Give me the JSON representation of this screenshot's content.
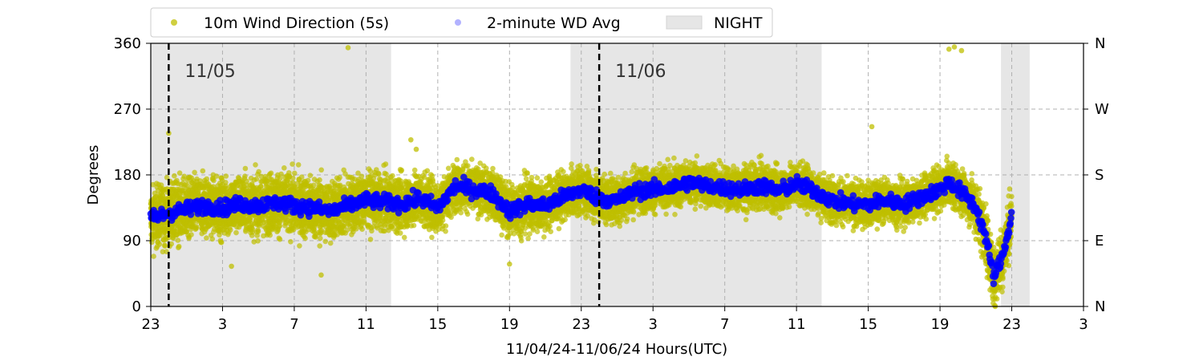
{
  "chart_data": {
    "type": "scatter",
    "xlabel": "11/04/24-11/06/24  Hours(UTC)",
    "ylabel": "Degrees",
    "x_range_hours": [
      0,
      52
    ],
    "x_tick_labels": [
      "23",
      "3",
      "7",
      "11",
      "15",
      "19",
      "23",
      "3",
      "7",
      "11",
      "15",
      "19",
      "23",
      "3"
    ],
    "ylim": [
      0,
      360
    ],
    "y_ticks": [
      "0",
      "90",
      "180",
      "270",
      "360"
    ],
    "y2_tick_labels": [
      "N",
      "E",
      "S",
      "W",
      "N"
    ],
    "grid": true,
    "legend_position": "top-left outside",
    "legend": {
      "wind": "10m Wind Direction (5s)",
      "avg": "2-minute WD Avg",
      "night": "NIGHT"
    },
    "colors": {
      "wind": "#bfbf00",
      "avg": "#0000ff",
      "night": "#e6e6e6",
      "midnight_line": "#000000"
    },
    "day_markers": [
      {
        "hour": 1,
        "label": "11/05"
      },
      {
        "hour": 25,
        "label": "11/06"
      }
    ],
    "night_bands": [
      [
        0,
        13.4
      ],
      [
        23.4,
        37.4
      ],
      [
        47.4,
        49
      ]
    ],
    "series": [
      {
        "name": "2-minute WD Avg",
        "x": [
          0,
          1,
          2,
          3,
          4,
          5,
          6,
          7,
          8,
          9,
          10,
          11,
          12,
          13,
          14,
          15,
          16,
          17,
          18,
          19,
          20,
          21,
          22,
          23,
          24,
          25,
          26,
          27,
          28,
          29,
          30,
          31,
          32,
          33,
          34,
          35,
          36,
          37,
          38,
          39,
          40,
          41,
          42,
          43,
          44,
          44.5,
          45,
          45.5,
          46,
          46.5,
          47,
          47.5,
          48
        ],
        "y": [
          120,
          128,
          133,
          138,
          135,
          140,
          138,
          142,
          138,
          135,
          130,
          138,
          145,
          143,
          140,
          148,
          135,
          165,
          160,
          155,
          130,
          140,
          138,
          150,
          160,
          148,
          145,
          158,
          160,
          162,
          170,
          165,
          162,
          160,
          165,
          158,
          168,
          158,
          145,
          140,
          140,
          145,
          140,
          150,
          160,
          170,
          160,
          150,
          135,
          100,
          40,
          70,
          125
        ]
      },
      {
        "name": "10m Wind Direction (5s)",
        "x": [
          0,
          1,
          2,
          3,
          4,
          5,
          6,
          7,
          8,
          9,
          10,
          11,
          12,
          13,
          14,
          15,
          16,
          17,
          18,
          19,
          20,
          21,
          22,
          23,
          24,
          25,
          26,
          27,
          28,
          29,
          30,
          31,
          32,
          33,
          34,
          35,
          36,
          37,
          38,
          39,
          40,
          41,
          42,
          43,
          44,
          44.5,
          45,
          45.5,
          46,
          46.5,
          47,
          47.5,
          48
        ],
        "y": [
          120,
          128,
          133,
          138,
          135,
          140,
          138,
          142,
          138,
          135,
          130,
          138,
          145,
          143,
          140,
          148,
          135,
          165,
          160,
          155,
          130,
          140,
          138,
          150,
          160,
          148,
          145,
          158,
          160,
          162,
          170,
          165,
          162,
          160,
          165,
          158,
          168,
          158,
          145,
          140,
          140,
          145,
          140,
          150,
          160,
          170,
          160,
          150,
          135,
          100,
          40,
          70,
          125
        ],
        "spread": [
          40,
          40,
          40,
          38,
          38,
          38,
          38,
          40,
          40,
          40,
          40,
          38,
          35,
          35,
          35,
          35,
          35,
          30,
          30,
          30,
          35,
          35,
          35,
          30,
          30,
          30,
          30,
          30,
          28,
          28,
          28,
          28,
          28,
          28,
          28,
          28,
          28,
          28,
          28,
          28,
          28,
          28,
          28,
          28,
          28,
          28,
          28,
          28,
          35,
          40,
          40,
          40,
          40
        ]
      }
    ],
    "outliers": [
      {
        "x": 1.0,
        "y": 237
      },
      {
        "x": 11.0,
        "y": 354
      },
      {
        "x": 14.5,
        "y": 228
      },
      {
        "x": 14.8,
        "y": 215
      },
      {
        "x": 40.2,
        "y": 246
      },
      {
        "x": 44.5,
        "y": 352
      },
      {
        "x": 44.8,
        "y": 355
      },
      {
        "x": 45.2,
        "y": 350
      },
      {
        "x": 46.0,
        "y": 92
      },
      {
        "x": 20.0,
        "y": 58
      },
      {
        "x": 4.5,
        "y": 55
      },
      {
        "x": 9.5,
        "y": 43
      },
      {
        "x": 47.5,
        "y": 40
      }
    ]
  }
}
